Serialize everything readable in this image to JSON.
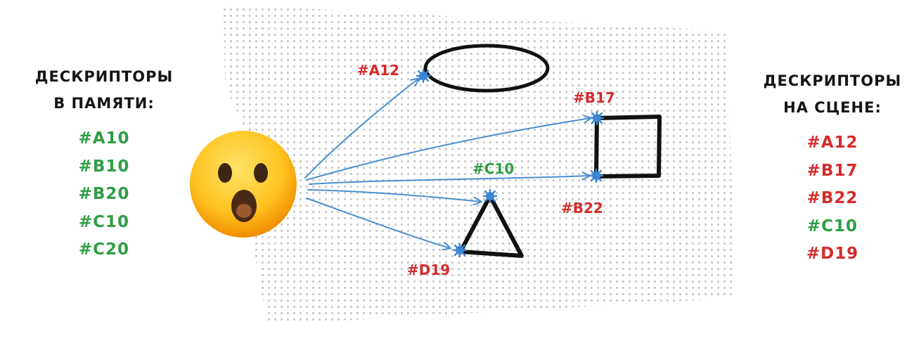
{
  "memory_panel": {
    "title_line1": "ДЕСКРИПТОРЫ",
    "title_line2": "В ПАМЯТИ:",
    "items": [
      "#A10",
      "#B10",
      "#B20",
      "#C10",
      "#C20"
    ]
  },
  "scene_panel": {
    "title_line1": "ДЕСКРИПТОРЫ",
    "title_line2": "НА СЦЕНЕ:",
    "items": [
      "#A12",
      "#B17",
      "#B22",
      "#C10",
      "#D19"
    ]
  },
  "scene_labels": {
    "ellipse": "#A12",
    "square_top": "#B17",
    "square_bottom": "#B22",
    "triangle_top": "#C10",
    "triangle_bottom": "#D19"
  },
  "icons": {
    "observer": "astonished-face-emoji"
  },
  "colors": {
    "green": "#2e9e44",
    "red": "#d62b2b",
    "arrow": "#4a8fcf",
    "shape": "#111111",
    "dots": "#c9c9c9"
  }
}
